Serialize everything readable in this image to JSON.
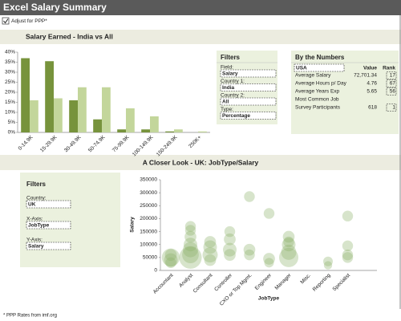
{
  "header": {
    "title": "Excel Salary Summary"
  },
  "checkbox": {
    "label": "Adjust for PPP*",
    "checked": true
  },
  "filters_top": {
    "title": "Filters",
    "fields": [
      {
        "label": "Field:",
        "value": "Salary"
      },
      {
        "label": "Country 1:",
        "value": "India"
      },
      {
        "label": "Country 2:",
        "value": "All"
      },
      {
        "label": "Type:",
        "value": "Percentage"
      }
    ]
  },
  "numbers": {
    "title": "By the Numbers",
    "country": "USA",
    "value_header": "Value",
    "rank_header": "Rank",
    "rows": [
      {
        "label": "Average Salary",
        "value": "72,701.34",
        "rank": "17"
      },
      {
        "label": "Average Hours p/ Day",
        "value": "4.76",
        "rank": "67"
      },
      {
        "label": "Average Years Exp",
        "value": "5.65",
        "rank": "56"
      },
      {
        "label": "Most Common Job",
        "value": null,
        "rank": null
      },
      {
        "label": "Survey Participants",
        "value": "618",
        "rank": "1"
      }
    ]
  },
  "filters_bottom": {
    "title": "Filters",
    "fields": [
      {
        "label": "Country:",
        "value": "UK"
      },
      {
        "label": "X-Axis:",
        "value": "JobType"
      },
      {
        "label": "Y-Axis:",
        "value": "Salary"
      }
    ]
  },
  "footer": "* PPP Rates from imf.org",
  "chart_data": [
    {
      "type": "bar",
      "title": "Salary Earned - India vs All",
      "categories": [
        "0-14.9K",
        "15-29.9K",
        "30-49.9K",
        "50-74.9K",
        "75-99.9K",
        "100-149.9K",
        "150-249.9K",
        "250K+"
      ],
      "series": [
        {
          "color": "#77933c",
          "values": [
            37,
            35.5,
            16,
            6.5,
            1.5,
            1.5,
            0.5,
            0
          ]
        },
        {
          "color": "#c3d69b",
          "values": [
            16,
            17,
            22.5,
            22.5,
            12,
            8,
            1.5,
            0.5
          ]
        }
      ],
      "ylim": [
        0,
        40
      ],
      "yticks": [
        {
          "value": 0,
          "label": "0%"
        },
        {
          "value": 5,
          "label": "5%"
        },
        {
          "value": 10,
          "label": "10%"
        },
        {
          "value": 15,
          "label": "15%"
        },
        {
          "value": 20,
          "label": "20%"
        },
        {
          "value": 25,
          "label": "25%"
        },
        {
          "value": 30,
          "label": "30%"
        },
        {
          "value": 35,
          "label": "35%"
        },
        {
          "value": 40,
          "label": "40%"
        }
      ],
      "grid": false
    },
    {
      "type": "bubble",
      "title": "A Closer Look - UK: JobType/Salary",
      "x_label": "JobType",
      "y_label": "Salary",
      "categories": [
        "Accountant",
        "Analyst",
        "Consultant",
        "Controller",
        "CXO or Top Mgmt.",
        "Engineer",
        "Manager",
        "Misc.",
        "Reporting",
        "Specialist"
      ],
      "series": [
        {
          "color": "#8db36a",
          "x": [
            "Accountant",
            "Accountant",
            "Accountant",
            "Accountant",
            "Analyst",
            "Analyst",
            "Analyst",
            "Analyst",
            "Analyst",
            "Analyst",
            "Analyst",
            "Consultant",
            "Consultant",
            "Consultant",
            "Consultant",
            "Controller",
            "Controller",
            "Controller",
            "Controller",
            "CXO or Top Mgmt.",
            "CXO or Top Mgmt.",
            "CXO or Top Mgmt.",
            "Engineer",
            "Engineer",
            "Engineer",
            "Manager",
            "Manager",
            "Manager",
            "Manager",
            "Manager",
            "Reporting",
            "Reporting",
            "Specialist",
            "Specialist",
            "Specialist",
            "Specialist"
          ],
          "values": [
            50000,
            40000,
            60000,
            30000,
            50000,
            80000,
            100000,
            130000,
            170000,
            155000,
            60000,
            60000,
            90000,
            110000,
            40000,
            120000,
            150000,
            80000,
            60000,
            285000,
            80000,
            60000,
            220000,
            45000,
            30000,
            50000,
            70000,
            100000,
            130000,
            110000,
            35000,
            20000,
            210000,
            95000,
            60000,
            50000
          ],
          "sizes": [
            14,
            8,
            6,
            5,
            22,
            10,
            8,
            6,
            5,
            5,
            12,
            10,
            8,
            6,
            6,
            6,
            5,
            8,
            6,
            5,
            6,
            5,
            5,
            6,
            4,
            16,
            10,
            8,
            6,
            5,
            4,
            3,
            5,
            5,
            5,
            5
          ]
        }
      ],
      "ylim": [
        0,
        350000
      ],
      "yticks": [
        0,
        50000,
        100000,
        150000,
        200000,
        250000,
        300000,
        350000
      ]
    }
  ]
}
